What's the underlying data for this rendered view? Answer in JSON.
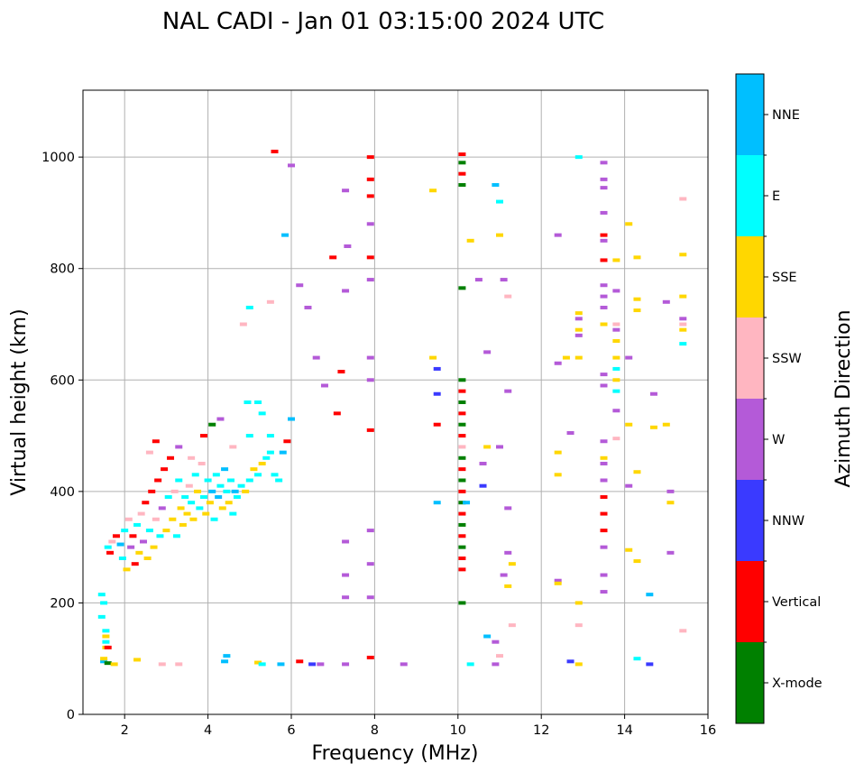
{
  "chart_data": {
    "type": "scatter",
    "title": "NAL CADI - Jan 01 03:15:00 2024 UTC",
    "xlabel": "Frequency (MHz)",
    "ylabel": "Virtual height (km)",
    "xlim": [
      1,
      16
    ],
    "ylim": [
      0,
      1120
    ],
    "xticks": [
      2,
      4,
      6,
      8,
      10,
      12,
      14,
      16
    ],
    "yticks": [
      0,
      200,
      400,
      600,
      800,
      1000
    ],
    "grid": true,
    "colorbar": {
      "label": "Azimuth Direction",
      "position": "right",
      "categories": [
        {
          "name": "X-mode",
          "color": "#008000"
        },
        {
          "name": "Vertical",
          "color": "#ff0000"
        },
        {
          "name": "NNW",
          "color": "#3a3aff"
        },
        {
          "name": "W",
          "color": "#b45ad8"
        },
        {
          "name": "SSW",
          "color": "#ffb6c1"
        },
        {
          "name": "SSE",
          "color": "#ffd700"
        },
        {
          "name": "E",
          "color": "#00ffff"
        },
        {
          "name": "NNE",
          "color": "#00bfff"
        }
      ]
    },
    "scatter_note": "approximate echo traces; each point = [frequency MHz, height km, direction]",
    "points": [
      [
        1.5,
        95,
        "NNE"
      ],
      [
        1.5,
        100,
        "SSE"
      ],
      [
        1.55,
        120,
        "SSE"
      ],
      [
        1.55,
        130,
        "E"
      ],
      [
        1.55,
        140,
        "SSE"
      ],
      [
        1.55,
        150,
        "E"
      ],
      [
        1.6,
        92,
        "X-mode"
      ],
      [
        1.45,
        175,
        "E"
      ],
      [
        1.45,
        215,
        "E"
      ],
      [
        1.5,
        200,
        "E"
      ],
      [
        1.6,
        120,
        "Vertical"
      ],
      [
        1.75,
        90,
        "SSE"
      ],
      [
        2.3,
        98,
        "SSE"
      ],
      [
        2.9,
        90,
        "SSW"
      ],
      [
        3.3,
        90,
        "SSW"
      ],
      [
        4.4,
        95,
        "NNE"
      ],
      [
        4.45,
        105,
        "NNE"
      ],
      [
        5.2,
        93,
        "SSE"
      ],
      [
        5.3,
        90,
        "E"
      ],
      [
        5.75,
        90,
        "NNE"
      ],
      [
        6.2,
        95,
        "Vertical"
      ],
      [
        6.5,
        90,
        "NNW"
      ],
      [
        6.7,
        90,
        "W"
      ],
      [
        7.3,
        90,
        "W"
      ],
      [
        7.9,
        102,
        "Vertical"
      ],
      [
        8.7,
        90,
        "W"
      ],
      [
        1.6,
        300,
        "E"
      ],
      [
        1.65,
        290,
        "Vertical"
      ],
      [
        1.7,
        310,
        "SSW"
      ],
      [
        1.8,
        320,
        "Vertical"
      ],
      [
        1.9,
        305,
        "NNE"
      ],
      [
        1.95,
        280,
        "E"
      ],
      [
        2.0,
        330,
        "E"
      ],
      [
        2.05,
        260,
        "SSE"
      ],
      [
        2.1,
        350,
        "SSW"
      ],
      [
        2.15,
        300,
        "W"
      ],
      [
        2.2,
        320,
        "Vertical"
      ],
      [
        2.25,
        270,
        "Vertical"
      ],
      [
        2.3,
        340,
        "E"
      ],
      [
        2.35,
        290,
        "SSE"
      ],
      [
        2.4,
        360,
        "SSW"
      ],
      [
        2.45,
        310,
        "W"
      ],
      [
        2.5,
        380,
        "Vertical"
      ],
      [
        2.55,
        280,
        "SSE"
      ],
      [
        2.6,
        330,
        "E"
      ],
      [
        2.65,
        400,
        "Vertical"
      ],
      [
        2.7,
        300,
        "SSE"
      ],
      [
        2.75,
        350,
        "SSW"
      ],
      [
        2.8,
        420,
        "Vertical"
      ],
      [
        2.85,
        320,
        "E"
      ],
      [
        2.9,
        370,
        "W"
      ],
      [
        2.95,
        440,
        "Vertical"
      ],
      [
        3.0,
        330,
        "SSE"
      ],
      [
        3.05,
        390,
        "E"
      ],
      [
        3.1,
        460,
        "Vertical"
      ],
      [
        3.15,
        350,
        "SSE"
      ],
      [
        3.2,
        400,
        "SSW"
      ],
      [
        3.25,
        320,
        "E"
      ],
      [
        3.3,
        420,
        "E"
      ],
      [
        3.35,
        370,
        "SSE"
      ],
      [
        3.4,
        340,
        "SSE"
      ],
      [
        3.45,
        390,
        "E"
      ],
      [
        3.5,
        360,
        "SSE"
      ],
      [
        3.55,
        410,
        "SSW"
      ],
      [
        3.6,
        380,
        "E"
      ],
      [
        3.65,
        350,
        "SSE"
      ],
      [
        3.7,
        430,
        "E"
      ],
      [
        3.75,
        400,
        "SSE"
      ],
      [
        3.8,
        370,
        "E"
      ],
      [
        3.85,
        450,
        "SSW"
      ],
      [
        3.9,
        390,
        "E"
      ],
      [
        3.95,
        360,
        "SSE"
      ],
      [
        4.0,
        420,
        "E"
      ],
      [
        4.05,
        380,
        "SSE"
      ],
      [
        4.1,
        400,
        "NNE"
      ],
      [
        4.15,
        350,
        "E"
      ],
      [
        4.2,
        430,
        "E"
      ],
      [
        4.25,
        390,
        "NNE"
      ],
      [
        4.3,
        410,
        "E"
      ],
      [
        4.35,
        370,
        "SSE"
      ],
      [
        4.4,
        440,
        "NNE"
      ],
      [
        4.45,
        400,
        "E"
      ],
      [
        4.5,
        380,
        "SSE"
      ],
      [
        4.55,
        420,
        "E"
      ],
      [
        4.6,
        360,
        "E"
      ],
      [
        4.65,
        400,
        "NNE"
      ],
      [
        4.7,
        390,
        "E"
      ],
      [
        4.8,
        410,
        "E"
      ],
      [
        4.9,
        400,
        "SSE"
      ],
      [
        5.0,
        420,
        "E"
      ],
      [
        5.1,
        440,
        "SSE"
      ],
      [
        5.2,
        430,
        "E"
      ],
      [
        5.3,
        450,
        "SSE"
      ],
      [
        5.4,
        460,
        "E"
      ],
      [
        5.5,
        470,
        "E"
      ],
      [
        5.6,
        430,
        "E"
      ],
      [
        5.7,
        420,
        "E"
      ],
      [
        2.6,
        470,
        "SSW"
      ],
      [
        2.75,
        490,
        "Vertical"
      ],
      [
        3.3,
        480,
        "W"
      ],
      [
        3.6,
        460,
        "SSW"
      ],
      [
        3.9,
        500,
        "Vertical"
      ],
      [
        4.1,
        520,
        "X-mode"
      ],
      [
        4.3,
        530,
        "W"
      ],
      [
        4.6,
        480,
        "SSW"
      ],
      [
        5.0,
        500,
        "E"
      ],
      [
        5.3,
        540,
        "E"
      ],
      [
        5.5,
        500,
        "E"
      ],
      [
        5.8,
        470,
        "NNE"
      ],
      [
        6.0,
        530,
        "NNE"
      ],
      [
        5.9,
        490,
        "Vertical"
      ],
      [
        5.2,
        560,
        "E"
      ],
      [
        4.95,
        560,
        "E"
      ],
      [
        4.85,
        700,
        "SSW"
      ],
      [
        5.0,
        730,
        "E"
      ],
      [
        5.5,
        740,
        "SSW"
      ],
      [
        5.85,
        860,
        "NNE"
      ],
      [
        5.6,
        1010,
        "Vertical"
      ],
      [
        6.0,
        985,
        "W"
      ],
      [
        6.2,
        770,
        "W"
      ],
      [
        6.4,
        730,
        "W"
      ],
      [
        6.6,
        640,
        "W"
      ],
      [
        6.8,
        590,
        "W"
      ],
      [
        7.1,
        540,
        "Vertical"
      ],
      [
        7.2,
        615,
        "Vertical"
      ],
      [
        7.3,
        760,
        "W"
      ],
      [
        7.3,
        940,
        "W"
      ],
      [
        7.35,
        840,
        "W"
      ],
      [
        7.0,
        820,
        "Vertical"
      ],
      [
        7.9,
        1000,
        "Vertical"
      ],
      [
        7.9,
        960,
        "Vertical"
      ],
      [
        7.9,
        930,
        "Vertical"
      ],
      [
        7.9,
        880,
        "W"
      ],
      [
        7.9,
        820,
        "Vertical"
      ],
      [
        7.9,
        780,
        "W"
      ],
      [
        7.9,
        640,
        "W"
      ],
      [
        7.9,
        600,
        "W"
      ],
      [
        7.9,
        510,
        "Vertical"
      ],
      [
        7.9,
        330,
        "W"
      ],
      [
        7.9,
        270,
        "W"
      ],
      [
        7.9,
        210,
        "W"
      ],
      [
        7.3,
        210,
        "W"
      ],
      [
        7.3,
        250,
        "W"
      ],
      [
        7.3,
        310,
        "W"
      ],
      [
        10.1,
        1005,
        "Vertical"
      ],
      [
        10.1,
        990,
        "X-mode"
      ],
      [
        10.1,
        970,
        "Vertical"
      ],
      [
        10.1,
        950,
        "X-mode"
      ],
      [
        10.1,
        765,
        "X-mode"
      ],
      [
        10.1,
        600,
        "X-mode"
      ],
      [
        10.1,
        580,
        "Vertical"
      ],
      [
        10.1,
        560,
        "X-mode"
      ],
      [
        10.1,
        540,
        "Vertical"
      ],
      [
        10.1,
        520,
        "X-mode"
      ],
      [
        10.1,
        500,
        "Vertical"
      ],
      [
        10.1,
        480,
        "SSW"
      ],
      [
        10.1,
        460,
        "X-mode"
      ],
      [
        10.1,
        440,
        "Vertical"
      ],
      [
        10.1,
        420,
        "X-mode"
      ],
      [
        10.1,
        400,
        "Vertical"
      ],
      [
        10.1,
        380,
        "X-mode"
      ],
      [
        10.1,
        360,
        "Vertical"
      ],
      [
        10.1,
        340,
        "X-mode"
      ],
      [
        10.1,
        320,
        "Vertical"
      ],
      [
        10.1,
        300,
        "X-mode"
      ],
      [
        10.1,
        280,
        "Vertical"
      ],
      [
        10.1,
        260,
        "Vertical"
      ],
      [
        10.1,
        200,
        "X-mode"
      ],
      [
        9.5,
        620,
        "NNW"
      ],
      [
        9.5,
        575,
        "NNW"
      ],
      [
        9.5,
        520,
        "Vertical"
      ],
      [
        9.5,
        380,
        "NNE"
      ],
      [
        9.4,
        640,
        "SSE"
      ],
      [
        9.4,
        940,
        "SSE"
      ],
      [
        10.2,
        380,
        "NNE"
      ],
      [
        10.3,
        850,
        "SSE"
      ],
      [
        10.5,
        780,
        "W"
      ],
      [
        10.7,
        650,
        "W"
      ],
      [
        10.6,
        450,
        "W"
      ],
      [
        10.6,
        410,
        "NNW"
      ],
      [
        10.7,
        480,
        "SSE"
      ],
      [
        10.9,
        950,
        "NNE"
      ],
      [
        11.0,
        860,
        "SSE"
      ],
      [
        11.0,
        920,
        "E"
      ],
      [
        11.1,
        780,
        "W"
      ],
      [
        11.2,
        750,
        "SSW"
      ],
      [
        11.2,
        580,
        "W"
      ],
      [
        11.0,
        480,
        "W"
      ],
      [
        11.2,
        370,
        "W"
      ],
      [
        11.2,
        290,
        "W"
      ],
      [
        11.3,
        270,
        "SSE"
      ],
      [
        11.1,
        250,
        "W"
      ],
      [
        11.2,
        230,
        "SSE"
      ],
      [
        11.3,
        160,
        "SSW"
      ],
      [
        10.7,
        140,
        "NNE"
      ],
      [
        10.9,
        130,
        "W"
      ],
      [
        11.0,
        105,
        "SSW"
      ],
      [
        10.3,
        90,
        "E"
      ],
      [
        10.9,
        90,
        "W"
      ],
      [
        12.4,
        860,
        "W"
      ],
      [
        12.4,
        630,
        "W"
      ],
      [
        12.6,
        640,
        "SSE"
      ],
      [
        12.7,
        505,
        "W"
      ],
      [
        12.4,
        470,
        "SSE"
      ],
      [
        12.4,
        430,
        "SSE"
      ],
      [
        12.4,
        240,
        "W"
      ],
      [
        12.4,
        235,
        "SSE"
      ],
      [
        12.7,
        95,
        "NNW"
      ],
      [
        12.9,
        90,
        "SSE"
      ],
      [
        12.9,
        1000,
        "E"
      ],
      [
        12.9,
        720,
        "SSE"
      ],
      [
        12.9,
        710,
        "W"
      ],
      [
        12.9,
        690,
        "SSE"
      ],
      [
        12.9,
        680,
        "W"
      ],
      [
        12.9,
        640,
        "SSE"
      ],
      [
        12.9,
        200,
        "SSE"
      ],
      [
        12.9,
        160,
        "SSW"
      ],
      [
        13.5,
        990,
        "W"
      ],
      [
        13.5,
        960,
        "W"
      ],
      [
        13.5,
        945,
        "W"
      ],
      [
        13.5,
        900,
        "W"
      ],
      [
        13.5,
        860,
        "Vertical"
      ],
      [
        13.5,
        850,
        "W"
      ],
      [
        13.5,
        815,
        "Vertical"
      ],
      [
        13.5,
        770,
        "W"
      ],
      [
        13.5,
        750,
        "W"
      ],
      [
        13.5,
        730,
        "W"
      ],
      [
        13.5,
        700,
        "SSE"
      ],
      [
        13.5,
        610,
        "W"
      ],
      [
        13.5,
        590,
        "W"
      ],
      [
        13.5,
        490,
        "W"
      ],
      [
        13.5,
        460,
        "SSE"
      ],
      [
        13.5,
        450,
        "W"
      ],
      [
        13.5,
        420,
        "W"
      ],
      [
        13.5,
        390,
        "Vertical"
      ],
      [
        13.5,
        360,
        "Vertical"
      ],
      [
        13.5,
        330,
        "Vertical"
      ],
      [
        13.5,
        300,
        "W"
      ],
      [
        13.5,
        250,
        "W"
      ],
      [
        13.5,
        220,
        "W"
      ],
      [
        13.8,
        815,
        "SSE"
      ],
      [
        13.8,
        760,
        "W"
      ],
      [
        13.8,
        700,
        "SSW"
      ],
      [
        13.8,
        690,
        "W"
      ],
      [
        13.8,
        670,
        "SSE"
      ],
      [
        13.8,
        640,
        "SSE"
      ],
      [
        13.8,
        620,
        "E"
      ],
      [
        13.8,
        600,
        "SSE"
      ],
      [
        13.8,
        580,
        "E"
      ],
      [
        13.8,
        545,
        "W"
      ],
      [
        13.8,
        495,
        "SSW"
      ],
      [
        14.1,
        880,
        "SSE"
      ],
      [
        14.1,
        640,
        "W"
      ],
      [
        14.1,
        520,
        "SSE"
      ],
      [
        14.1,
        410,
        "W"
      ],
      [
        14.1,
        295,
        "SSE"
      ],
      [
        14.3,
        820,
        "SSE"
      ],
      [
        14.3,
        745,
        "SSE"
      ],
      [
        14.3,
        725,
        "SSE"
      ],
      [
        14.3,
        435,
        "SSE"
      ],
      [
        14.3,
        275,
        "SSE"
      ],
      [
        14.3,
        100,
        "E"
      ],
      [
        14.6,
        90,
        "NNW"
      ],
      [
        14.6,
        215,
        "NNE"
      ],
      [
        14.7,
        575,
        "W"
      ],
      [
        14.7,
        515,
        "SSE"
      ],
      [
        15.0,
        740,
        "W"
      ],
      [
        15.0,
        520,
        "SSE"
      ],
      [
        15.1,
        400,
        "W"
      ],
      [
        15.1,
        380,
        "SSE"
      ],
      [
        15.1,
        290,
        "W"
      ],
      [
        15.4,
        925,
        "SSW"
      ],
      [
        15.4,
        825,
        "SSE"
      ],
      [
        15.4,
        750,
        "SSE"
      ],
      [
        15.4,
        710,
        "W"
      ],
      [
        15.4,
        700,
        "SSW"
      ],
      [
        15.4,
        690,
        "SSE"
      ],
      [
        15.4,
        665,
        "E"
      ],
      [
        15.4,
        150,
        "SSW"
      ]
    ]
  }
}
